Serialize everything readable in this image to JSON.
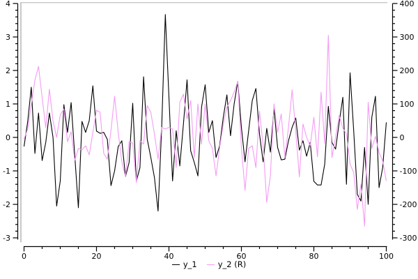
{
  "chart_data": {
    "type": "line",
    "title": "",
    "xlabel": "",
    "ylabel": "",
    "grid": false,
    "legend_position": "bottom-center",
    "x_start": 0,
    "x_step": 1,
    "axes": {
      "x": {
        "min": 0,
        "max": 100,
        "major": 20,
        "minor": 5,
        "labels": [
          "0",
          "20",
          "40",
          "60",
          "80",
          "100"
        ]
      },
      "y_left": {
        "min": -3,
        "max": 4,
        "major": 1,
        "minor": 0.2,
        "labels": [
          "-3",
          "-2",
          "-1",
          "0",
          "1",
          "2",
          "3",
          "4"
        ]
      },
      "y_right": {
        "min": -300,
        "max": 400,
        "major": 100,
        "minor": 20,
        "labels": [
          "-300",
          "-200",
          "-100",
          "0",
          "100",
          "200",
          "300",
          "400"
        ]
      }
    },
    "series": [
      {
        "name": "y_1",
        "axis": "left",
        "color": "#000000",
        "values": [
          -0.27,
          0.46,
          1.5,
          -0.48,
          0.73,
          -0.69,
          -0.15,
          0.73,
          0.0,
          -2.05,
          -1.3,
          0.98,
          0.15,
          1.04,
          -0.54,
          -2.1,
          0.48,
          0.15,
          0.5,
          1.54,
          0.19,
          0.12,
          0.15,
          -0.06,
          -1.44,
          -1.0,
          -0.27,
          -0.1,
          -1.17,
          -0.75,
          1.02,
          -1.31,
          -0.9,
          1.81,
          -0.05,
          -0.6,
          -1.2,
          -2.2,
          0.3,
          3.67,
          1.2,
          -1.3,
          0.2,
          -0.85,
          0.4,
          1.72,
          -0.4,
          -0.75,
          -1.15,
          0.9,
          1.57,
          0.15,
          0.5,
          -0.6,
          -0.25,
          0.6,
          1.27,
          0.05,
          1.0,
          1.67,
          0.3,
          -0.73,
          0.2,
          1.1,
          1.46,
          0.1,
          -0.73,
          0.27,
          -0.44,
          0.85,
          -0.3,
          -0.67,
          -0.65,
          -0.1,
          0.3,
          0.58,
          -0.38,
          -0.1,
          -0.56,
          -0.15,
          -1.31,
          -1.42,
          -1.42,
          -0.8,
          0.93,
          -0.15,
          -0.35,
          0.45,
          1.2,
          -1.4,
          1.93,
          0.2,
          -1.7,
          -1.9,
          -0.3,
          -2.0,
          0.6,
          1.23,
          -1.5,
          -0.9,
          0.45
        ]
      },
      {
        "name": "y_2 (R)",
        "axis": "right",
        "color": "#F49CF4",
        "values": [
          -5,
          25,
          98,
          171,
          212,
          119,
          29,
          144,
          50,
          0,
          67,
          85,
          -13,
          17,
          -69,
          -33,
          -37,
          -25,
          -52,
          15,
          81,
          75,
          -48,
          -65,
          21,
          123,
          15,
          -73,
          -117,
          -13,
          -17,
          -135,
          -10,
          -20,
          95,
          75,
          10,
          -65,
          30,
          25,
          30,
          25,
          -90,
          105,
          129,
          55,
          110,
          -60,
          100,
          -20,
          100,
          -10,
          -33,
          -115,
          -30,
          40,
          90,
          110,
          135,
          167,
          -30,
          -158,
          -33,
          -25,
          -90,
          78,
          -25,
          -194,
          -115,
          100,
          15,
          70,
          -60,
          30,
          142,
          20,
          -118,
          40,
          0,
          -25,
          60,
          -58,
          135,
          -18,
          305,
          -60,
          0,
          65,
          28,
          10,
          -80,
          -105,
          -215,
          -140,
          -265,
          105,
          -33,
          3,
          -45,
          -70,
          -130
        ]
      }
    ],
    "legend": [
      {
        "label": "y_1",
        "color": "#000000"
      },
      {
        "label": "y_2 (R)",
        "color": "#F49CF4"
      }
    ],
    "frame_color": "#C8C8C8",
    "background": "#FFFFFF"
  }
}
